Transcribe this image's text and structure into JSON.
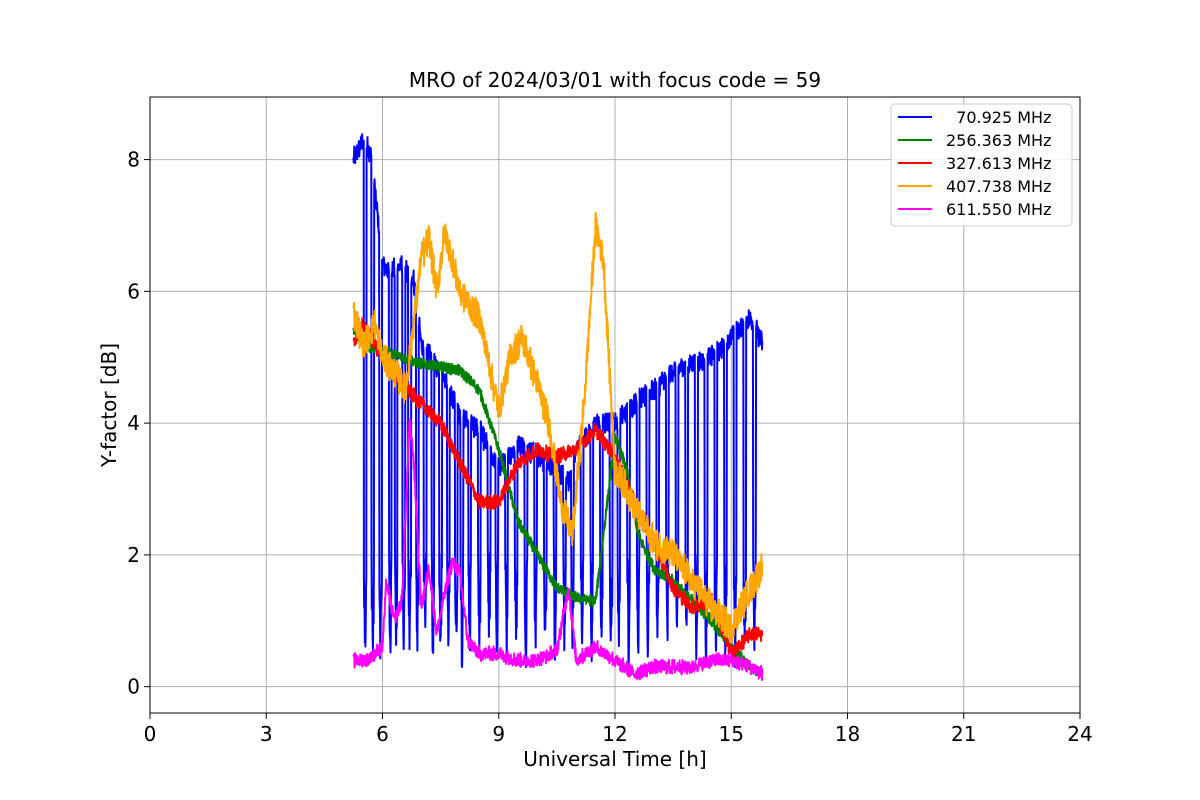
{
  "chart_data": {
    "type": "line",
    "title": "MRO of 2024/03/01 with focus code = 59",
    "xlabel": "Universal Time [h]",
    "ylabel": "Y-factor [dB]",
    "xlim": [
      0,
      24
    ],
    "ylim": [
      -0.4,
      8.95
    ],
    "x_ticks": [
      0,
      3,
      6,
      9,
      12,
      15,
      18,
      21,
      24
    ],
    "x_tick_labels": [
      "0",
      "3",
      "6",
      "9",
      "12",
      "15",
      "18",
      "21",
      "24"
    ],
    "y_ticks": [
      0,
      2,
      4,
      6,
      8
    ],
    "y_tick_labels": [
      "0",
      "2",
      "4",
      "6",
      "8"
    ],
    "grid": true,
    "legend_position": "top-right",
    "series": [
      {
        "name": "70.925 MHz",
        "legend_label": "  70.925 MHz",
        "color": "#0000ff",
        "x": [
          5.25,
          5.5,
          5.7,
          5.9,
          6.0,
          6.2,
          6.5,
          6.8,
          7.0,
          7.5,
          7.8,
          8.0,
          8.5,
          9.0,
          9.5,
          10.0,
          10.5,
          10.8,
          11.0,
          11.5,
          12.0,
          12.5,
          13.0,
          13.5,
          14.0,
          14.5,
          15.0,
          15.5,
          15.8
        ],
        "y": [
          8.0,
          8.3,
          8.1,
          7.0,
          6.4,
          6.3,
          6.4,
          6.2,
          5.2,
          4.8,
          4.4,
          4.1,
          3.9,
          3.3,
          3.7,
          3.5,
          3.3,
          3.1,
          3.6,
          4.0,
          4.0,
          4.3,
          4.5,
          4.8,
          4.9,
          5.0,
          5.3,
          5.6,
          5.2
        ],
        "dips": [
          5.55,
          5.75,
          5.95,
          6.2,
          6.35,
          6.55,
          6.7,
          6.9,
          7.1,
          7.3,
          7.5,
          7.7,
          7.9,
          8.05,
          8.25,
          8.5,
          8.75,
          8.95,
          9.2,
          9.45,
          9.7,
          9.95,
          10.2,
          10.45,
          10.7,
          10.9,
          11.15,
          11.4,
          11.65,
          11.9,
          12.1,
          12.35,
          12.6,
          12.85,
          13.1,
          13.35,
          13.6,
          13.85,
          14.1,
          14.35,
          14.6,
          14.85,
          15.1,
          15.35,
          15.6
        ]
      },
      {
        "name": "256.363 MHz",
        "legend_label": "256.363 MHz",
        "color": "#008000",
        "x": [
          5.25,
          5.5,
          6.0,
          6.5,
          7.0,
          7.5,
          8.0,
          8.5,
          9.0,
          9.5,
          10.0,
          10.5,
          11.0,
          11.5,
          12.0,
          12.3,
          12.6,
          13.0,
          13.5,
          14.0,
          14.5,
          15.0,
          15.5,
          15.8
        ],
        "y": [
          5.4,
          5.2,
          5.1,
          5.0,
          4.9,
          4.85,
          4.8,
          4.5,
          3.6,
          2.5,
          2.0,
          1.5,
          1.35,
          1.3,
          3.8,
          3.3,
          2.3,
          1.8,
          1.6,
          1.3,
          1.0,
          0.6,
          0.3,
          0.2
        ]
      },
      {
        "name": "327.613 MHz",
        "legend_label": "327.613 MHz",
        "color": "#ff0000",
        "x": [
          5.25,
          5.5,
          6.0,
          6.5,
          7.0,
          7.5,
          8.0,
          8.5,
          9.0,
          9.5,
          10.0,
          10.5,
          11.0,
          11.5,
          12.0,
          12.5,
          13.0,
          13.5,
          14.0,
          14.5,
          15.0,
          15.5,
          15.8
        ],
        "y": [
          5.2,
          5.5,
          5.0,
          4.6,
          4.3,
          4.0,
          3.4,
          2.8,
          2.8,
          3.4,
          3.6,
          3.5,
          3.6,
          3.9,
          3.5,
          2.8,
          2.2,
          1.5,
          1.2,
          1.3,
          0.5,
          0.8,
          0.8
        ]
      },
      {
        "name": "407.738 MHz",
        "legend_label": "407.738 MHz",
        "color": "#ffa500",
        "x": [
          5.25,
          5.5,
          5.8,
          6.0,
          6.3,
          6.6,
          7.0,
          7.2,
          7.4,
          7.6,
          7.8,
          8.0,
          8.5,
          9.0,
          9.3,
          9.6,
          10.0,
          10.3,
          10.6,
          10.9,
          11.2,
          11.5,
          11.7,
          12.0,
          12.3,
          12.6,
          13.0,
          13.5,
          14.0,
          14.5,
          15.0,
          15.5,
          15.8
        ],
        "y": [
          5.7,
          5.2,
          5.5,
          5.0,
          4.8,
          4.5,
          6.5,
          6.8,
          6.0,
          6.9,
          6.5,
          6.0,
          5.6,
          4.2,
          5.0,
          5.3,
          4.6,
          4.0,
          2.8,
          2.3,
          4.3,
          7.0,
          6.5,
          3.3,
          3.0,
          2.6,
          2.2,
          2.0,
          1.6,
          1.2,
          0.9,
          1.5,
          1.8
        ]
      },
      {
        "name": "611.550 MHz",
        "legend_label": "611.550 MHz",
        "color": "#ff00ff",
        "x": [
          5.25,
          5.6,
          6.0,
          6.1,
          6.3,
          6.5,
          6.7,
          6.8,
          7.0,
          7.2,
          7.4,
          7.6,
          7.8,
          8.0,
          8.2,
          8.5,
          9.0,
          9.5,
          10.0,
          10.5,
          10.8,
          11.0,
          11.5,
          12.0,
          12.5,
          13.0,
          13.5,
          14.0,
          14.5,
          15.0,
          15.5,
          15.8
        ],
        "y": [
          0.4,
          0.4,
          0.6,
          1.6,
          1.0,
          1.3,
          4.0,
          3.5,
          1.2,
          1.8,
          0.8,
          1.4,
          1.9,
          1.7,
          0.7,
          0.5,
          0.5,
          0.4,
          0.4,
          0.55,
          1.5,
          0.4,
          0.6,
          0.4,
          0.2,
          0.3,
          0.3,
          0.3,
          0.4,
          0.4,
          0.3,
          0.2
        ]
      }
    ]
  }
}
